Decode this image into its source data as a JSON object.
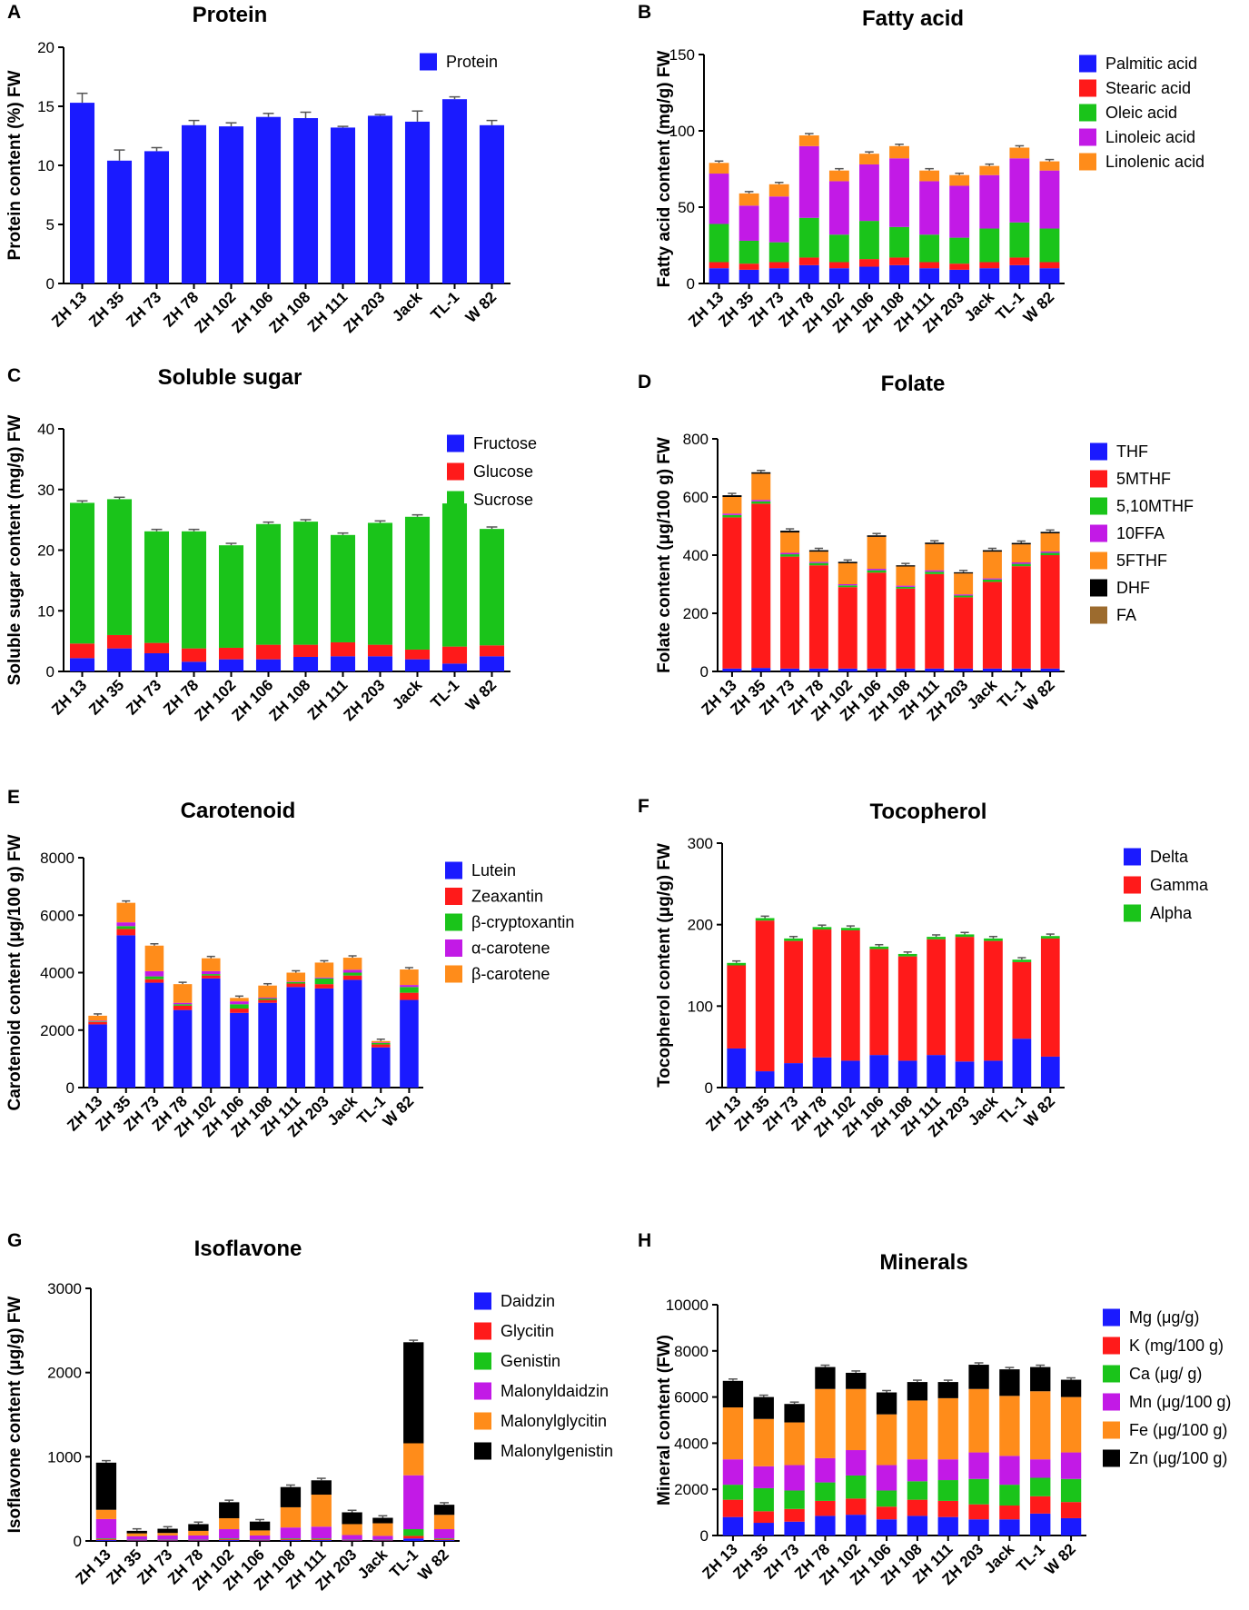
{
  "chart_data": [
    {
      "panel": "A",
      "type": "bar",
      "title": "Protein",
      "ylabel": "Protein content (%) FW",
      "xlabel": "",
      "ylim": [
        0,
        20
      ],
      "yticks": [
        0,
        5,
        10,
        15,
        20
      ],
      "categories": [
        "ZH 13",
        "ZH 35",
        "ZH 73",
        "ZH 78",
        "ZH 102",
        "ZH 106",
        "ZH 108",
        "ZH 111",
        "ZH 203",
        "Jack",
        "TL-1",
        "W 82"
      ],
      "series": [
        {
          "name": "Protein",
          "color": "#1a1aff",
          "values": [
            15.3,
            10.4,
            11.2,
            13.4,
            13.3,
            14.1,
            14.0,
            13.2,
            14.2,
            13.7,
            15.6,
            13.4
          ],
          "errors": [
            0.8,
            0.9,
            0.3,
            0.4,
            0.3,
            0.3,
            0.5,
            0.1,
            0.1,
            0.9,
            0.2,
            0.4
          ]
        }
      ],
      "legend": "top-right"
    },
    {
      "panel": "B",
      "type": "bar",
      "stacked": true,
      "title": "Fatty acid",
      "ylabel": "Fatty acid content (mg/g) FW",
      "xlabel": "",
      "ylim": [
        0,
        150
      ],
      "yticks": [
        0,
        50,
        100,
        150
      ],
      "categories": [
        "ZH 13",
        "ZH 35",
        "ZH 73",
        "ZH 78",
        "ZH 102",
        "ZH 106",
        "ZH 108",
        "ZH 111",
        "ZH 203",
        "Jack",
        "TL-1",
        "W 82"
      ],
      "series": [
        {
          "name": "Palmitic acid",
          "color": "#1a1aff",
          "values": [
            10,
            9,
            10,
            12,
            10,
            11,
            12,
            10,
            9,
            10,
            12,
            10
          ]
        },
        {
          "name": "Stearic acid",
          "color": "#ff1a1a",
          "values": [
            4,
            4,
            4,
            5,
            4,
            5,
            5,
            4,
            4,
            4,
            5,
            4
          ]
        },
        {
          "name": "Oleic acid",
          "color": "#1ac41a",
          "values": [
            25,
            15,
            13,
            26,
            18,
            25,
            20,
            18,
            17,
            22,
            23,
            22
          ]
        },
        {
          "name": "Linoleic acid",
          "color": "#c21ae6",
          "values": [
            33,
            23,
            30,
            47,
            35,
            37,
            45,
            35,
            34,
            35,
            42,
            38
          ]
        },
        {
          "name": "Linolenic acid",
          "color": "#ff8c1a",
          "values": [
            7,
            8,
            8,
            7,
            7,
            7,
            8,
            7,
            7,
            6,
            7,
            6
          ]
        }
      ],
      "legend": "top-right"
    },
    {
      "panel": "C",
      "type": "bar",
      "stacked": true,
      "title": "Soluble sugar",
      "ylabel": "Soluble sugar content (mg/g) FW",
      "xlabel": "",
      "ylim": [
        0,
        40
      ],
      "yticks": [
        0,
        10,
        20,
        30,
        40
      ],
      "categories": [
        "ZH 13",
        "ZH 35",
        "ZH 73",
        "ZH 78",
        "ZH 102",
        "ZH 106",
        "ZH 108",
        "ZH 111",
        "ZH 203",
        "Jack",
        "TL-1",
        "W 82"
      ],
      "series": [
        {
          "name": "Fructose",
          "color": "#1a1aff",
          "values": [
            2.2,
            3.8,
            3.0,
            1.6,
            2.0,
            2.0,
            2.4,
            2.5,
            2.5,
            2.0,
            1.3,
            2.5
          ]
        },
        {
          "name": "Glucose",
          "color": "#ff1a1a",
          "values": [
            2.4,
            2.2,
            1.7,
            2.2,
            1.9,
            2.4,
            2.0,
            2.3,
            1.9,
            1.6,
            2.8,
            1.8
          ]
        },
        {
          "name": "Sucrose",
          "color": "#1ac41a",
          "values": [
            23.2,
            22.4,
            18.4,
            19.3,
            16.9,
            19.9,
            20.3,
            17.7,
            20.1,
            21.9,
            23.6,
            19.2
          ]
        }
      ],
      "legend": "top-right"
    },
    {
      "panel": "D",
      "type": "bar",
      "stacked": true,
      "title": "Folate",
      "ylabel": "Folate content (μg/100 g) FW",
      "xlabel": "",
      "ylim": [
        0,
        800
      ],
      "yticks": [
        0,
        200,
        400,
        600,
        800
      ],
      "categories": [
        "ZH 13",
        "ZH 35",
        "ZH 73",
        "ZH 78",
        "ZH 102",
        "ZH 106",
        "ZH 108",
        "ZH 111",
        "ZH 203",
        "Jack",
        "TL-1",
        "W 82"
      ],
      "series": [
        {
          "name": "THF",
          "color": "#1a1aff",
          "values": [
            10,
            12,
            10,
            10,
            10,
            10,
            10,
            10,
            10,
            10,
            10,
            10
          ]
        },
        {
          "name": "5MTHF",
          "color": "#ff1a1a",
          "values": [
            520,
            565,
            385,
            355,
            280,
            330,
            275,
            325,
            245,
            298,
            352,
            390
          ]
        },
        {
          "name": "5,10MTHF",
          "color": "#1ac41a",
          "values": [
            8,
            8,
            8,
            8,
            6,
            8,
            6,
            8,
            6,
            8,
            8,
            8
          ]
        },
        {
          "name": "10FFA",
          "color": "#c21ae6",
          "values": [
            5,
            5,
            5,
            4,
            4,
            5,
            4,
            5,
            4,
            4,
            5,
            5
          ]
        },
        {
          "name": "5FTHF",
          "color": "#ff8c1a",
          "values": [
            57,
            90,
            70,
            35,
            72,
            110,
            66,
            90,
            72,
            92,
            62,
            62
          ]
        },
        {
          "name": "DHF",
          "color": "#000000",
          "values": [
            6,
            5,
            6,
            5,
            5,
            5,
            4,
            5,
            4,
            5,
            5,
            5
          ]
        },
        {
          "name": "FA",
          "color": "#9c6b2e",
          "values": [
            0,
            0,
            0,
            0,
            0,
            0,
            0,
            0,
            0,
            0,
            0,
            0
          ]
        }
      ],
      "legend": "top-right"
    },
    {
      "panel": "E",
      "type": "bar",
      "stacked": true,
      "title": "Carotenoid",
      "ylabel": "Carotenoid content (μg/100 g) FW",
      "xlabel": "",
      "ylim": [
        0,
        8000
      ],
      "yticks": [
        0,
        2000,
        4000,
        6000,
        8000
      ],
      "categories": [
        "ZH 13",
        "ZH 35",
        "ZH 73",
        "ZH 78",
        "ZH 102",
        "ZH 106",
        "ZH 108",
        "ZH 111",
        "ZH 203",
        "Jack",
        "TL-1",
        "W 82"
      ],
      "series": [
        {
          "name": "Lutein",
          "color": "#1a1aff",
          "values": [
            2200,
            5300,
            3650,
            2700,
            3800,
            2600,
            2950,
            3500,
            3450,
            3750,
            1400,
            3050
          ]
        },
        {
          "name": "Zeaxantin",
          "color": "#ff1a1a",
          "values": [
            80,
            220,
            120,
            150,
            100,
            150,
            100,
            120,
            150,
            150,
            100,
            250
          ]
        },
        {
          "name": "β-cryptoxantin",
          "color": "#1ac41a",
          "values": [
            20,
            100,
            100,
            50,
            50,
            150,
            50,
            50,
            200,
            100,
            50,
            200
          ]
        },
        {
          "name": "α-carotene",
          "color": "#c21ae6",
          "values": [
            30,
            130,
            180,
            50,
            100,
            100,
            30,
            20,
            30,
            100,
            20,
            70
          ]
        },
        {
          "name": "β-carotene",
          "color": "#ff8c1a",
          "values": [
            170,
            680,
            890,
            650,
            450,
            120,
            420,
            310,
            520,
            420,
            50,
            540
          ]
        }
      ],
      "legend": "top-right"
    },
    {
      "panel": "F",
      "type": "bar",
      "stacked": true,
      "title": "Tocopherol",
      "ylabel": "Tocopherol content (μg/g) FW",
      "xlabel": "",
      "ylim": [
        0,
        300
      ],
      "yticks": [
        0,
        100,
        200,
        300
      ],
      "categories": [
        "ZH 13",
        "ZH 35",
        "ZH 73",
        "ZH 78",
        "ZH 102",
        "ZH 106",
        "ZH 108",
        "ZH 111",
        "ZH 203",
        "Jack",
        "TL-1",
        "W 82"
      ],
      "series": [
        {
          "name": "Delta",
          "color": "#1a1aff",
          "values": [
            48,
            20,
            30,
            37,
            33,
            40,
            33,
            40,
            32,
            33,
            60,
            38
          ]
        },
        {
          "name": "Gamma",
          "color": "#ff1a1a",
          "values": [
            102,
            185,
            150,
            157,
            160,
            130,
            128,
            142,
            153,
            147,
            94,
            145
          ]
        },
        {
          "name": "Alpha",
          "color": "#1ac41a",
          "values": [
            3,
            3,
            3,
            3,
            3,
            3,
            3,
            3,
            3,
            3,
            3,
            3
          ]
        }
      ],
      "legend": "top-right"
    },
    {
      "panel": "G",
      "type": "bar",
      "stacked": true,
      "title": "Isoflavone",
      "ylabel": "Isoflavone content (μg/g) FW",
      "xlabel": "",
      "ylim": [
        0,
        3000
      ],
      "yticks": [
        0,
        1000,
        2000,
        3000
      ],
      "categories": [
        "ZH 13",
        "ZH 35",
        "ZH 73",
        "ZH 78",
        "ZH 102",
        "ZH 106",
        "ZH 108",
        "ZH 111",
        "ZH 203",
        "Jack",
        "TL-1",
        "W 82"
      ],
      "series": [
        {
          "name": "Daidzin",
          "color": "#1a1aff",
          "values": [
            10,
            5,
            5,
            5,
            10,
            5,
            10,
            10,
            5,
            5,
            30,
            10
          ]
        },
        {
          "name": "Glycitin",
          "color": "#ff1a1a",
          "values": [
            10,
            5,
            5,
            5,
            10,
            5,
            10,
            10,
            5,
            5,
            30,
            10
          ]
        },
        {
          "name": "Genistin",
          "color": "#1ac41a",
          "values": [
            10,
            5,
            5,
            5,
            10,
            5,
            10,
            10,
            5,
            5,
            80,
            10
          ]
        },
        {
          "name": "Malonyldaidzin",
          "color": "#c21ae6",
          "values": [
            230,
            40,
            50,
            50,
            110,
            50,
            130,
            140,
            55,
            45,
            640,
            110
          ]
        },
        {
          "name": "Malonylglycitin",
          "color": "#ff8c1a",
          "values": [
            110,
            35,
            30,
            55,
            130,
            60,
            240,
            380,
            130,
            150,
            380,
            170
          ]
        },
        {
          "name": "Malonylgenistin",
          "color": "#000000",
          "values": [
            560,
            30,
            50,
            80,
            190,
            105,
            240,
            170,
            140,
            65,
            1200,
            120
          ]
        }
      ],
      "legend": "top-right"
    },
    {
      "panel": "H",
      "type": "bar",
      "stacked": true,
      "title": "Minerals",
      "ylabel": "Mineral content (FW)",
      "xlabel": "",
      "ylim": [
        0,
        10000
      ],
      "yticks": [
        0,
        2000,
        4000,
        6000,
        8000,
        10000
      ],
      "categories": [
        "ZH 13",
        "ZH 35",
        "ZH 73",
        "ZH 78",
        "ZH 102",
        "ZH 106",
        "ZH 108",
        "ZH 111",
        "ZH 203",
        "Jack",
        "TL-1",
        "W 82"
      ],
      "series": [
        {
          "name": "Mg (μg/g)",
          "color": "#1a1aff",
          "values": [
            800,
            550,
            600,
            850,
            900,
            700,
            850,
            800,
            700,
            700,
            950,
            750
          ]
        },
        {
          "name": "K (mg/100 g)",
          "color": "#ff1a1a",
          "values": [
            750,
            500,
            550,
            650,
            700,
            550,
            700,
            700,
            650,
            600,
            750,
            700
          ]
        },
        {
          "name": "Ca (μg/ g)",
          "color": "#1ac41a",
          "values": [
            650,
            1000,
            800,
            800,
            1000,
            700,
            800,
            900,
            1100,
            900,
            800,
            1000
          ]
        },
        {
          "name": "Mn (μg/100 g)",
          "color": "#c21ae6",
          "values": [
            1100,
            950,
            1100,
            1050,
            1100,
            1100,
            950,
            900,
            1150,
            1250,
            800,
            1150
          ]
        },
        {
          "name": "Fe (μg/100 g)",
          "color": "#ff8c1a",
          "values": [
            2250,
            2050,
            1850,
            3000,
            2650,
            2200,
            2550,
            2650,
            2750,
            2600,
            2950,
            2400
          ]
        },
        {
          "name": "Zn (μg/100 g)",
          "color": "#000000",
          "values": [
            1150,
            950,
            800,
            950,
            700,
            950,
            800,
            700,
            1050,
            1150,
            1050,
            750
          ]
        }
      ],
      "legend": "top-right"
    }
  ]
}
